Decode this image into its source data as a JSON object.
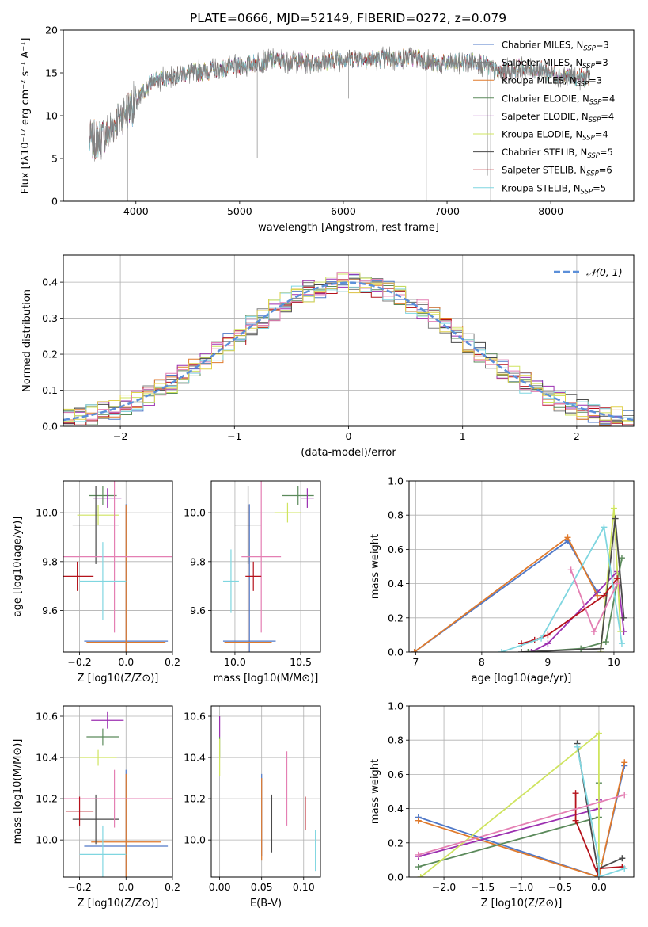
{
  "figure": {
    "title": "PLATE=0666, MJD=52149, FIBERID=0272, z=0.079",
    "model_colors": [
      "#4f78c8",
      "#7f7f7f",
      "#e07a2c",
      "#5b8a5b",
      "#9b2fb0",
      "#cfe45f",
      "#4a4a4a",
      "#b5121b",
      "#7fd6e0",
      "#e47fb3",
      "#e0d14a"
    ]
  },
  "chart_data": [
    {
      "id": "spectrum",
      "type": "line",
      "title": "PLATE=0666, MJD=52149, FIBERID=0272, z=0.079",
      "xlabel": "wavelength [Angstrom, rest frame]",
      "ylabel": "Flux [fλ10⁻¹⁷ erg cm⁻² s⁻¹ A⁻¹]",
      "xlim": [
        3300,
        8800
      ],
      "ylim": [
        0,
        20
      ],
      "xticks": [
        4000,
        5000,
        6000,
        7000,
        8000
      ],
      "yticks": [
        0,
        5,
        10,
        15,
        20
      ],
      "grid": false,
      "legend_position": "right",
      "legend": [
        {
          "text": "Chabrier MILES, N_SSP=3",
          "color": "#4f78c8"
        },
        {
          "text": "Salpeter MILES, N_SSP=3",
          "color": "#7f7f7f"
        },
        {
          "text": "Kroupa MILES, N_SSP=3",
          "color": "#e07a2c"
        },
        {
          "text": "Chabrier ELODIE, N_SSP=4",
          "color": "#5b8a5b"
        },
        {
          "text": "Salpeter ELODIE, N_SSP=4",
          "color": "#9b2fb0"
        },
        {
          "text": "Kroupa ELODIE, N_SSP=4",
          "color": "#cfe45f"
        },
        {
          "text": "Chabrier STELIB, N_SSP=5",
          "color": "#4a4a4a"
        },
        {
          "text": "Salpeter STELIB, N_SSP=6",
          "color": "#b5121b"
        },
        {
          "text": "Kroupa STELIB, N_SSP=5",
          "color": "#7fd6e0"
        }
      ],
      "continuum": {
        "x": [
          3550,
          3700,
          3850,
          4000,
          4150,
          4300,
          4500,
          4700,
          4900,
          5100,
          5300,
          5500,
          5700,
          5900,
          6100,
          6300,
          6500,
          6700,
          6900,
          7100,
          7300,
          7500,
          7700,
          7900,
          8100,
          8300
        ],
        "y": [
          7.0,
          7.5,
          10.0,
          11.5,
          14.0,
          14.5,
          15.0,
          15.2,
          15.6,
          16.0,
          16.5,
          16.3,
          16.2,
          16.5,
          16.7,
          16.6,
          16.7,
          16.8,
          16.0,
          16.2,
          16.3,
          15.0,
          15.6,
          15.3,
          14.7,
          14.4
        ]
      }
    },
    {
      "id": "residuals",
      "type": "line",
      "xlabel": "(data-model)/error",
      "ylabel": "Normed distribution",
      "xlim": [
        -2.5,
        2.5
      ],
      "ylim": [
        0,
        0.475
      ],
      "xticks": [
        -2,
        -1,
        0,
        1,
        2
      ],
      "yticks": [
        0.0,
        0.1,
        0.2,
        0.3,
        0.4
      ],
      "grid": true,
      "legend_position": "top-right",
      "legend": [
        {
          "text": "𝒩(0, 1)",
          "color": "#5b8fd9"
        }
      ],
      "bin_width": 0.1,
      "bins_start": -2.5
    },
    {
      "id": "age-vs-Z",
      "type": "scatter",
      "xlabel": "Z [log10(Z/Z⊙)]",
      "ylabel": "age [log10(age/yr)]",
      "xlim": [
        -0.27,
        0.2
      ],
      "ylim": [
        9.43,
        10.13
      ],
      "xticks": [
        -0.2,
        0.0,
        0.2
      ],
      "yticks": [
        9.6,
        9.8,
        10.0
      ],
      "grid": true,
      "points": [
        {
          "color": "#4f78c8",
          "x": 0.0,
          "xerr": 0.18,
          "y": 9.475,
          "yerr": 0.56
        },
        {
          "color": "#e07a2c",
          "x": 0.0,
          "xerr": 0.17,
          "y": 9.47,
          "yerr": 0.56
        },
        {
          "color": "#5b8a5b",
          "x": -0.1,
          "xerr": 0.06,
          "y": 10.07,
          "yerr": 0.04
        },
        {
          "color": "#9b2fb0",
          "x": -0.08,
          "xerr": 0.06,
          "y": 10.06,
          "yerr": 0.04
        },
        {
          "color": "#cfe45f",
          "x": -0.12,
          "xerr": 0.09,
          "y": 9.99,
          "yerr": 0.04
        },
        {
          "color": "#4a4a4a",
          "x": -0.13,
          "xerr": 0.1,
          "y": 9.95,
          "yerr": 0.16
        },
        {
          "color": "#e47fb3",
          "x": -0.05,
          "xerr": 0.25,
          "y": 9.82,
          "yerr": 0.31
        },
        {
          "color": "#b5121b",
          "x": -0.21,
          "xerr": 0.07,
          "y": 9.74,
          "yerr": 0.06
        },
        {
          "color": "#7fd6e0",
          "x": -0.1,
          "xerr": 0.1,
          "y": 9.72,
          "yerr": 0.16
        }
      ]
    },
    {
      "id": "age-vs-mass",
      "type": "scatter",
      "xlabel": "mass [log10(M/M⊙)]",
      "ylabel": "",
      "xlim": [
        9.82,
        10.65
      ],
      "ylim": [
        9.43,
        10.13
      ],
      "xticks": [
        10.0,
        10.5
      ],
      "yticks": [
        9.6,
        9.8,
        10.0
      ],
      "grid": true,
      "points": [
        {
          "color": "#4f78c8",
          "x": 10.11,
          "xerr": 0.2,
          "y": 9.475,
          "yerr": 0.56
        },
        {
          "color": "#e07a2c",
          "x": 10.1,
          "xerr": 0.18,
          "y": 9.47,
          "yerr": 0.56
        },
        {
          "color": "#5b8a5b",
          "x": 10.48,
          "xerr": 0.12,
          "y": 10.07,
          "yerr": 0.04
        },
        {
          "color": "#9b2fb0",
          "x": 10.55,
          "xerr": 0.05,
          "y": 10.06,
          "yerr": 0.04
        },
        {
          "color": "#cfe45f",
          "x": 10.4,
          "xerr": 0.1,
          "y": 10.0,
          "yerr": 0.04
        },
        {
          "color": "#4a4a4a",
          "x": 10.1,
          "xerr": 0.1,
          "y": 9.95,
          "yerr": 0.16
        },
        {
          "color": "#e47fb3",
          "x": 10.2,
          "xerr": 0.15,
          "y": 9.82,
          "yerr": 0.31
        },
        {
          "color": "#b5121b",
          "x": 10.14,
          "xerr": 0.06,
          "y": 9.74,
          "yerr": 0.06
        },
        {
          "color": "#7fd6e0",
          "x": 9.97,
          "xerr": 0.06,
          "y": 9.72,
          "yerr": 0.13
        }
      ]
    },
    {
      "id": "weight-vs-age",
      "type": "line",
      "xlabel": "age [log10(age/yr)]",
      "ylabel": "mass weight",
      "xlim": [
        6.9,
        10.3
      ],
      "ylim": [
        0,
        1.0
      ],
      "xticks": [
        7,
        8,
        9,
        10
      ],
      "yticks": [
        0.0,
        0.2,
        0.4,
        0.6,
        0.8,
        1.0
      ],
      "grid": true,
      "series": [
        {
          "color": "#4f78c8",
          "x": [
            6.98,
            9.3,
            9.75
          ],
          "y": [
            0.0,
            0.65,
            0.35
          ]
        },
        {
          "color": "#e07a2c",
          "x": [
            6.98,
            9.3,
            9.75
          ],
          "y": [
            0.0,
            0.67,
            0.33
          ]
        },
        {
          "color": "#5b8a5b",
          "x": [
            8.7,
            9.5,
            9.88,
            10.12
          ],
          "y": [
            0.0,
            0.02,
            0.06,
            0.55
          ]
        },
        {
          "color": "#9b2fb0",
          "x": [
            8.75,
            9.0,
            10.05,
            10.15
          ],
          "y": [
            0.0,
            0.05,
            0.47,
            0.12
          ]
        },
        {
          "color": "#cfe45f",
          "x": [
            9.8,
            10.0,
            10.1
          ],
          "y": [
            0.0,
            0.84,
            0.12
          ]
        },
        {
          "color": "#4a4a4a",
          "x": [
            8.6,
            9.8,
            10.02,
            10.15
          ],
          "y": [
            0.0,
            0.02,
            0.78,
            0.2
          ]
        },
        {
          "color": "#b5121b",
          "x": [
            8.6,
            8.8,
            9.0,
            9.85,
            10.05
          ],
          "y": [
            0.05,
            0.07,
            0.1,
            0.33,
            0.43
          ]
        },
        {
          "color": "#7fd6e0",
          "x": [
            8.3,
            8.9,
            9.85,
            10.12
          ],
          "y": [
            0.0,
            0.08,
            0.73,
            0.05
          ]
        },
        {
          "color": "#e47fb3",
          "x": [
            9.35,
            9.7,
            10.05
          ],
          "y": [
            0.48,
            0.12,
            0.4
          ]
        }
      ]
    },
    {
      "id": "mass-vs-Z",
      "type": "scatter",
      "xlabel": "Z [log10(Z/Z⊙)]",
      "ylabel": "mass [log10(M/M⊙)]",
      "xlim": [
        -0.27,
        0.2
      ],
      "ylim": [
        9.82,
        10.65
      ],
      "xticks": [
        -0.2,
        0.0,
        0.2
      ],
      "yticks": [
        10.0,
        10.2,
        10.4,
        10.6
      ],
      "grid": true,
      "points": [
        {
          "color": "#4f78c8",
          "x": 0.0,
          "xerr": 0.18,
          "y": 9.97,
          "yerr": 0.37
        },
        {
          "color": "#e07a2c",
          "x": 0.0,
          "xerr": 0.15,
          "y": 9.99,
          "yerr": 0.33
        },
        {
          "color": "#5b8a5b",
          "x": -0.1,
          "xerr": 0.07,
          "y": 10.5,
          "yerr": 0.04
        },
        {
          "color": "#9b2fb0",
          "x": -0.08,
          "xerr": 0.07,
          "y": 10.58,
          "yerr": 0.04
        },
        {
          "color": "#cfe45f",
          "x": -0.12,
          "xerr": 0.08,
          "y": 10.4,
          "yerr": 0.04
        },
        {
          "color": "#4a4a4a",
          "x": -0.13,
          "xerr": 0.1,
          "y": 10.1,
          "yerr": 0.12
        },
        {
          "color": "#e47fb3",
          "x": -0.05,
          "xerr": 0.25,
          "y": 10.2,
          "yerr": 0.14
        },
        {
          "color": "#b5121b",
          "x": -0.2,
          "xerr": 0.06,
          "y": 10.14,
          "yerr": 0.07
        },
        {
          "color": "#7fd6e0",
          "x": -0.1,
          "xerr": 0.1,
          "y": 9.93,
          "yerr": 0.14
        }
      ]
    },
    {
      "id": "mass-vs-ebv",
      "type": "scatter",
      "xlabel": "E(B-V)",
      "ylabel": "",
      "xlim": [
        -0.01,
        0.12
      ],
      "ylim": [
        9.82,
        10.65
      ],
      "xticks": [
        0.0,
        0.05,
        0.1
      ],
      "yticks": [
        10.0,
        10.2,
        10.4,
        10.6
      ],
      "grid": true,
      "points": [
        {
          "color": "#4f78c8",
          "x": 0.05,
          "xerr": 0.0,
          "y": 10.12,
          "yerr": 0.2
        },
        {
          "color": "#e07a2c",
          "x": 0.05,
          "xerr": 0.0,
          "y": 10.1,
          "yerr": 0.2
        },
        {
          "color": "#5b8a5b",
          "x": 0.0,
          "xerr": 0.0,
          "y": 10.45,
          "yerr": 0.05
        },
        {
          "color": "#9b2fb0",
          "x": 0.0,
          "xerr": 0.0,
          "y": 10.55,
          "yerr": 0.05
        },
        {
          "color": "#cfe45f",
          "x": 0.0,
          "xerr": 0.0,
          "y": 10.4,
          "yerr": 0.09
        },
        {
          "color": "#4a4a4a",
          "x": 0.062,
          "xerr": 0.0,
          "y": 10.08,
          "yerr": 0.14
        },
        {
          "color": "#e47fb3",
          "x": 0.08,
          "xerr": 0.0,
          "y": 10.25,
          "yerr": 0.18
        },
        {
          "color": "#b5121b",
          "x": 0.102,
          "xerr": 0.0,
          "y": 10.13,
          "yerr": 0.08
        },
        {
          "color": "#7fd6e0",
          "x": 0.114,
          "xerr": 0.0,
          "y": 9.95,
          "yerr": 0.1
        }
      ]
    },
    {
      "id": "weight-vs-Z",
      "type": "line",
      "xlabel": "Z [log10(Z/Z⊙)]",
      "ylabel": "mass weight",
      "xlim": [
        -2.45,
        0.45
      ],
      "ylim": [
        0,
        1.0
      ],
      "xticks": [
        -2.0,
        -1.5,
        -1.0,
        -0.5,
        0.0
      ],
      "yticks": [
        0.0,
        0.2,
        0.4,
        0.6,
        0.8,
        1.0
      ],
      "grid": true,
      "series": [
        {
          "color": "#4f78c8",
          "x": [
            -2.33,
            0.0,
            0.33
          ],
          "y": [
            0.35,
            0.0,
            0.65
          ]
        },
        {
          "color": "#e07a2c",
          "x": [
            -2.33,
            0.0,
            0.33
          ],
          "y": [
            0.33,
            0.0,
            0.67
          ]
        },
        {
          "color": "#5b8a5b",
          "x": [
            -2.33,
            0.0,
            0.0
          ],
          "y": [
            0.06,
            0.35,
            0.55
          ]
        },
        {
          "color": "#9b2fb0",
          "x": [
            -2.33,
            0.0,
            0.0
          ],
          "y": [
            0.12,
            0.4,
            0.45
          ]
        },
        {
          "color": "#cfe45f",
          "x": [
            -2.3,
            0.0,
            0.0
          ],
          "y": [
            0.0,
            0.84,
            0.08
          ]
        },
        {
          "color": "#4a4a4a",
          "x": [
            -0.28,
            0.0,
            0.0,
            0.3
          ],
          "y": [
            0.78,
            0.0,
            0.05,
            0.11
          ]
        },
        {
          "color": "#b5121b",
          "x": [
            -0.3,
            -0.3,
            0.0,
            0.0,
            0.3
          ],
          "y": [
            0.49,
            0.33,
            0.0,
            0.05,
            0.06
          ]
        },
        {
          "color": "#7fd6e0",
          "x": [
            -0.28,
            0.0,
            0.0,
            0.33
          ],
          "y": [
            0.76,
            0.1,
            0.0,
            0.05
          ]
        },
        {
          "color": "#e47fb3",
          "x": [
            -2.33,
            0.33
          ],
          "y": [
            0.13,
            0.48
          ]
        }
      ]
    }
  ]
}
